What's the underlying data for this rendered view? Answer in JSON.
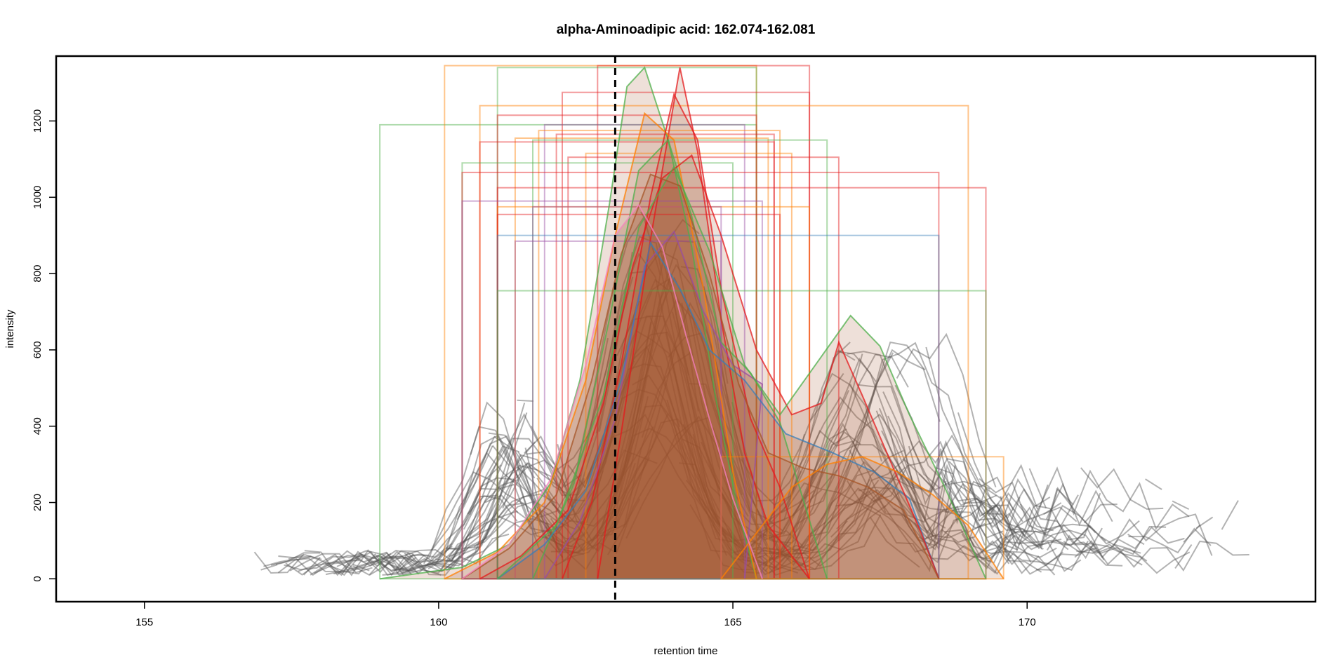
{
  "chart_data": {
    "type": "line",
    "title": "alpha-Aminoadipic acid: 162.074-162.081",
    "xlabel": "retention time",
    "ylabel": "intensity",
    "xlim": [
      153.5,
      174.9
    ],
    "ylim": [
      -60,
      1370
    ],
    "xticks": [
      155,
      160,
      165,
      170
    ],
    "yticks": [
      0,
      200,
      400,
      600,
      800,
      1000,
      1200
    ],
    "grid": false,
    "legend": "none",
    "reference_line": {
      "x": 163.0,
      "style": "dashed",
      "color": "#000000"
    },
    "colors": {
      "raw_trace": "#555555",
      "peaks": [
        "#e41a1c",
        "#4daf4a",
        "#ff7f00",
        "#984ea3",
        "#377eb8",
        "#a65628",
        "#f781bf"
      ],
      "fill": "#a0522d"
    },
    "peak_boxes": [
      {
        "x0": 159.0,
        "x1": 165.4,
        "top": 1190,
        "color": "#4daf4a"
      },
      {
        "x0": 160.1,
        "x1": 165.4,
        "top": 1345,
        "color": "#ff7f00"
      },
      {
        "x0": 161.0,
        "x1": 165.4,
        "top": 1340,
        "color": "#4daf4a"
      },
      {
        "x0": 162.7,
        "x1": 166.3,
        "top": 1345,
        "color": "#e41a1c"
      },
      {
        "x0": 162.1,
        "x1": 166.3,
        "top": 1275,
        "color": "#e41a1c"
      },
      {
        "x0": 160.7,
        "x1": 169.0,
        "top": 1240,
        "color": "#ff7f00"
      },
      {
        "x0": 161.0,
        "x1": 165.4,
        "top": 1215,
        "color": "#e41a1c"
      },
      {
        "x0": 161.8,
        "x1": 165.2,
        "top": 1190,
        "color": "#984ea3"
      },
      {
        "x0": 161.7,
        "x1": 165.8,
        "top": 1175,
        "color": "#ff7f00"
      },
      {
        "x0": 162.0,
        "x1": 165.7,
        "top": 1165,
        "color": "#e41a1c"
      },
      {
        "x0": 161.3,
        "x1": 165.6,
        "top": 1155,
        "color": "#ff7f00"
      },
      {
        "x0": 161.6,
        "x1": 166.6,
        "top": 1150,
        "color": "#4daf4a"
      },
      {
        "x0": 160.7,
        "x1": 165.7,
        "top": 1145,
        "color": "#e41a1c"
      },
      {
        "x0": 162.5,
        "x1": 166.0,
        "top": 1115,
        "color": "#ff7f00"
      },
      {
        "x0": 162.2,
        "x1": 166.8,
        "top": 1105,
        "color": "#e41a1c"
      },
      {
        "x0": 160.4,
        "x1": 165.0,
        "top": 1090,
        "color": "#4daf4a"
      },
      {
        "x0": 160.4,
        "x1": 168.5,
        "top": 1065,
        "color": "#e41a1c"
      },
      {
        "x0": 161.0,
        "x1": 169.3,
        "top": 1025,
        "color": "#e41a1c"
      },
      {
        "x0": 160.4,
        "x1": 165.5,
        "top": 990,
        "color": "#984ea3"
      },
      {
        "x0": 161.0,
        "x1": 166.3,
        "top": 975,
        "color": "#ff7f00"
      },
      {
        "x0": 161.0,
        "x1": 165.8,
        "top": 955,
        "color": "#e41a1c"
      },
      {
        "x0": 161.6,
        "x1": 164.8,
        "top": 975,
        "color": "#984ea3"
      },
      {
        "x0": 161.0,
        "x1": 168.5,
        "top": 900,
        "color": "#377eb8"
      },
      {
        "x0": 161.3,
        "x1": 164.8,
        "top": 885,
        "color": "#984ea3"
      },
      {
        "x0": 161.0,
        "x1": 169.3,
        "top": 755,
        "color": "#4daf4a"
      },
      {
        "x0": 164.8,
        "x1": 169.6,
        "top": 320,
        "color": "#ff7f00"
      }
    ],
    "peak_curves": [
      {
        "color": "#4daf4a",
        "x": [
          159.0,
          160.4,
          161.2,
          161.9,
          162.4,
          162.9,
          163.2,
          163.5,
          163.9,
          164.3,
          164.7,
          165.1,
          165.4
        ],
        "y": [
          0,
          30,
          90,
          250,
          520,
          980,
          1290,
          1340,
          1150,
          870,
          480,
          170,
          0
        ]
      },
      {
        "color": "#e41a1c",
        "x": [
          162.7,
          163.1,
          163.6,
          164.1,
          164.4,
          164.8,
          165.2,
          165.6,
          166.3
        ],
        "y": [
          0,
          380,
          890,
          1340,
          1120,
          680,
          330,
          140,
          0
        ]
      },
      {
        "color": "#ff7f00",
        "x": [
          160.1,
          161.0,
          161.8,
          162.5,
          163.0,
          163.5,
          164.0,
          164.5,
          165.0,
          165.4
        ],
        "y": [
          0,
          70,
          200,
          520,
          900,
          1220,
          1150,
          760,
          280,
          0
        ]
      },
      {
        "color": "#e41a1c",
        "x": [
          162.1,
          162.6,
          163.1,
          163.6,
          164.0,
          164.4,
          164.8,
          165.3,
          165.8,
          166.3
        ],
        "y": [
          0,
          200,
          560,
          1000,
          1270,
          1150,
          760,
          420,
          240,
          0
        ]
      },
      {
        "color": "#4daf4a",
        "x": [
          161.6,
          162.3,
          162.9,
          163.4,
          163.9,
          164.3,
          164.8,
          165.3,
          165.8,
          166.6
        ],
        "y": [
          0,
          250,
          680,
          1070,
          1150,
          950,
          620,
          540,
          410,
          0
        ]
      },
      {
        "color": "#984ea3",
        "x": [
          161.8,
          162.4,
          163.0,
          163.5,
          164.0,
          164.5,
          165.0,
          165.5,
          165.2
        ],
        "y": [
          0,
          150,
          420,
          820,
          910,
          700,
          560,
          510,
          0
        ]
      },
      {
        "color": "#377eb8",
        "x": [
          161.0,
          161.8,
          162.5,
          163.1,
          163.6,
          164.1,
          164.6,
          165.2,
          165.9,
          166.7,
          167.4,
          168.0,
          168.5
        ],
        "y": [
          0,
          90,
          230,
          520,
          880,
          760,
          600,
          520,
          380,
          330,
          280,
          210,
          0
        ]
      },
      {
        "color": "#e41a1c",
        "x": [
          160.7,
          161.4,
          162.2,
          162.8,
          163.3,
          163.8,
          164.3,
          164.8,
          165.4,
          166.0,
          166.5,
          166.8,
          167.2,
          167.7,
          168.2,
          168.5
        ],
        "y": [
          0,
          60,
          180,
          460,
          820,
          1050,
          1110,
          900,
          600,
          430,
          460,
          620,
          480,
          300,
          120,
          0
        ]
      },
      {
        "color": "#4daf4a",
        "x": [
          161.0,
          162.0,
          162.8,
          163.4,
          164.0,
          164.6,
          165.2,
          165.8,
          166.4,
          167.0,
          167.5,
          168.0,
          168.6,
          169.3
        ],
        "y": [
          0,
          140,
          480,
          920,
          1080,
          860,
          560,
          430,
          560,
          690,
          610,
          430,
          240,
          0
        ]
      },
      {
        "color": "#a65628",
        "x": [
          160.4,
          161.2,
          162.0,
          162.6,
          163.1,
          163.6,
          164.1,
          164.6,
          165.1,
          165.6,
          166.2,
          166.8,
          167.3,
          167.9,
          168.5
        ],
        "y": [
          0,
          80,
          220,
          520,
          850,
          1060,
          1030,
          800,
          510,
          330,
          290,
          270,
          240,
          180,
          0
        ]
      },
      {
        "color": "#ff7f00",
        "x": [
          164.8,
          165.4,
          166.0,
          166.6,
          167.2,
          167.8,
          168.4,
          169.0,
          169.6
        ],
        "y": [
          0,
          120,
          240,
          300,
          320,
          280,
          220,
          140,
          0
        ]
      },
      {
        "color": "#f781bf",
        "x": [
          160.4,
          161.2,
          161.9,
          162.5,
          163.0,
          163.4,
          163.8,
          164.2,
          164.6,
          165.0,
          165.5
        ],
        "y": [
          0,
          90,
          260,
          560,
          900,
          980,
          870,
          640,
          420,
          210,
          0
        ]
      }
    ]
  }
}
